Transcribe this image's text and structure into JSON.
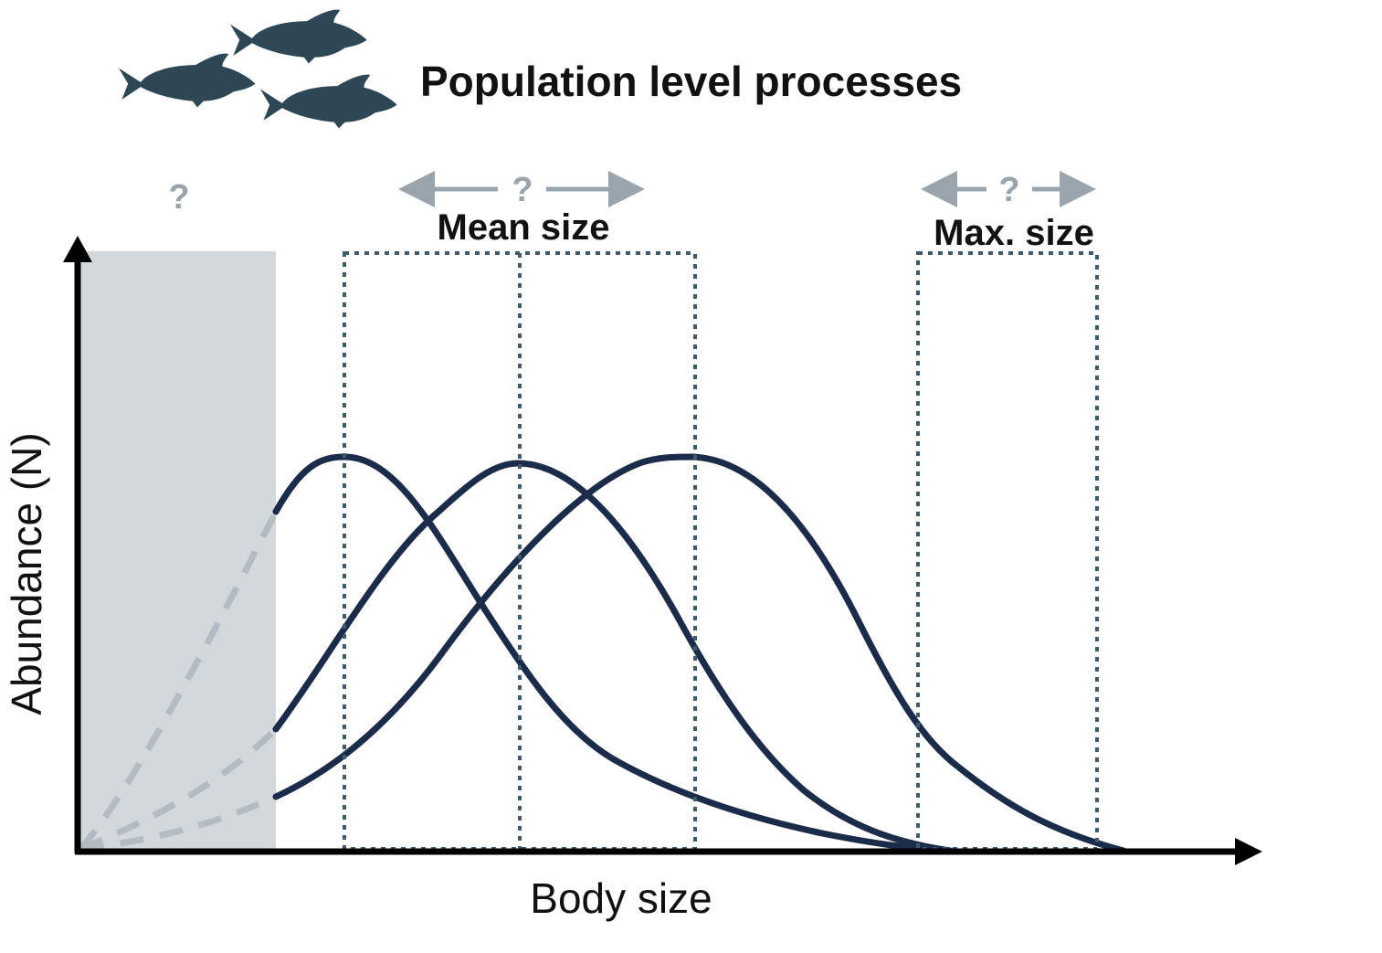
{
  "header": {
    "title": "Population level processes",
    "icon": "fish-school-icon"
  },
  "axes": {
    "x_label": "Body size",
    "y_label": "Abundance (N)"
  },
  "regions": {
    "unknown_small_sizes_mark": "?",
    "mean_size": {
      "label": "Mean size",
      "shift_mark": "?"
    },
    "max_size": {
      "label": "Max. size",
      "shift_mark": "?"
    }
  },
  "colors": {
    "curve": "#1b2c4a",
    "dashed_curve": "#b4bcc3",
    "shaded_region": "#d3d8dc",
    "dotted_box": "#3e5a6b",
    "question_mark": "#9aa4ac",
    "fish": "#2d4755"
  }
}
